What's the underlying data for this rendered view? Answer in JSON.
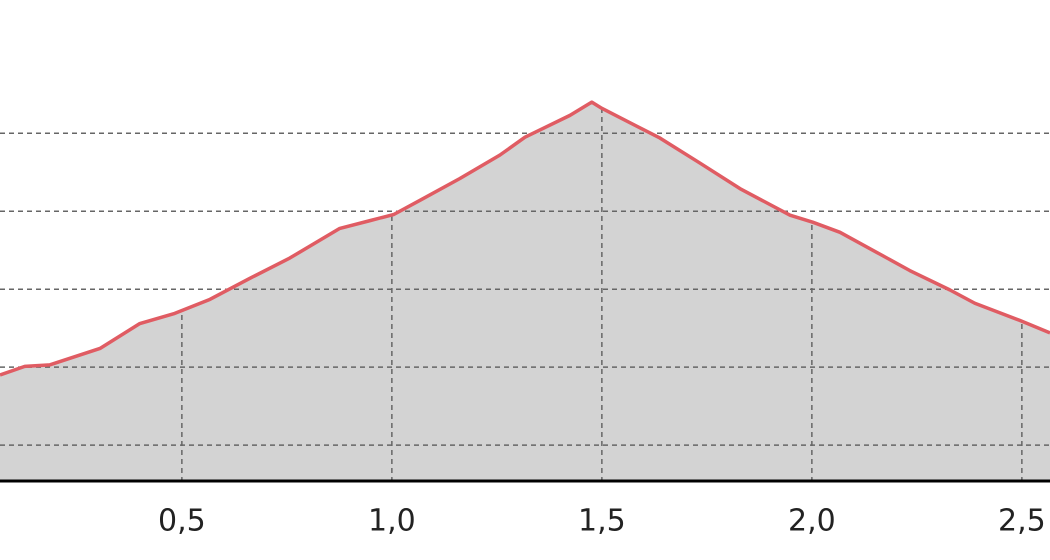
{
  "chart_data": {
    "type": "area",
    "x": [
      0.067,
      0.126,
      0.186,
      0.305,
      0.4,
      0.483,
      0.567,
      0.662,
      0.757,
      0.876,
      0.948,
      1.005,
      1.067,
      1.162,
      1.257,
      1.317,
      1.424,
      1.476,
      1.5,
      1.638,
      1.733,
      1.829,
      1.948,
      2.002,
      2.067,
      2.162,
      2.233,
      2.329,
      2.388,
      2.495,
      2.567
    ],
    "values": [
      1.9,
      2.01,
      2.03,
      2.24,
      2.56,
      2.69,
      2.87,
      3.14,
      3.4,
      3.78,
      3.88,
      3.96,
      4.14,
      4.42,
      4.72,
      4.95,
      5.23,
      5.4,
      5.32,
      4.94,
      4.62,
      4.29,
      3.95,
      3.86,
      3.73,
      3.45,
      3.24,
      2.99,
      2.82,
      2.6,
      2.44
    ],
    "color": "#e05c63",
    "fill": "#d3d3d3",
    "xlim": [
      0.067,
      2.567
    ],
    "xticks": [
      {
        "value": 0.5,
        "label": "0,5"
      },
      {
        "value": 1.0,
        "label": "1,0"
      },
      {
        "value": 1.5,
        "label": "1,5"
      },
      {
        "value": 2.0,
        "label": "2,0"
      },
      {
        "value": 2.5,
        "label": "2,5"
      }
    ],
    "ylim": [
      0.54,
      6.71
    ],
    "yticks": [
      1,
      2,
      3,
      4,
      5
    ],
    "grid": true
  }
}
